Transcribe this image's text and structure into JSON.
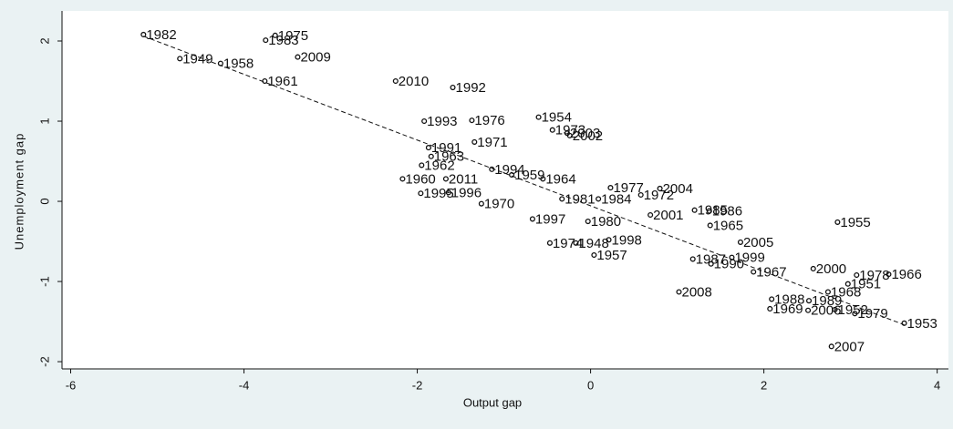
{
  "chart_data": {
    "type": "scatter",
    "x_label": "Output gap",
    "y_label": "Unemployment gap",
    "xlim": [
      -6.1,
      4.13
    ],
    "ylim": [
      -2.09,
      2.375
    ],
    "xticks": [
      -6,
      -4,
      -2,
      0,
      2,
      4
    ],
    "yticks": [
      -2,
      -1,
      0,
      1,
      2
    ],
    "color": "#111111",
    "fit_color": "#111111",
    "fit_line": {
      "x": [
        -5.16,
        3.62
      ],
      "y": [
        2.06,
        -1.54
      ]
    },
    "labels": [
      "1982",
      "1975",
      "1983",
      "1949",
      "1958",
      "2009",
      "1961",
      "2010",
      "1992",
      "1993",
      "1976",
      "1954",
      "1973",
      "2003",
      "2002",
      "1971",
      "1991",
      "1963",
      "1962",
      "1994",
      "1959",
      "1964",
      "1960",
      "2011",
      "1977",
      "2004",
      "1972",
      "1981",
      "1984",
      "1995",
      "1996",
      "1970",
      "1985",
      "1986",
      "2001",
      "1965",
      "1997",
      "1980",
      "1955",
      "2005",
      "1998",
      "1974",
      "1948",
      "1999",
      "1987",
      "1990",
      "1957",
      "1967",
      "2000",
      "1978",
      "1966",
      "1951",
      "1968",
      "2008",
      "1988",
      "1989",
      "1969",
      "2006",
      "1952",
      "1979",
      "1953",
      "2007"
    ],
    "x": [
      -5.16,
      -3.64,
      -3.75,
      -4.74,
      -4.27,
      -3.38,
      -3.76,
      -2.25,
      -1.59,
      -1.92,
      -1.37,
      -0.6,
      -0.44,
      -0.27,
      -0.24,
      -1.34,
      -1.87,
      -1.84,
      -1.95,
      -1.14,
      -0.91,
      -0.55,
      -2.17,
      -1.67,
      0.23,
      0.8,
      0.58,
      -0.33,
      0.09,
      -1.96,
      -1.64,
      -1.26,
      1.2,
      1.37,
      0.69,
      1.38,
      -0.67,
      -0.03,
      2.85,
      1.73,
      0.21,
      -0.47,
      -0.17,
      1.63,
      1.18,
      1.39,
      0.04,
      1.88,
      2.57,
      3.07,
      3.44,
      2.97,
      2.74,
      1.02,
      2.09,
      2.52,
      2.07,
      2.51,
      2.82,
      3.05,
      3.62,
      2.78
    ],
    "y": [
      2.08,
      2.07,
      2.01,
      1.78,
      1.72,
      1.8,
      1.5,
      1.5,
      1.42,
      1.0,
      1.01,
      1.05,
      0.89,
      0.85,
      0.82,
      0.74,
      0.67,
      0.56,
      0.45,
      0.4,
      0.33,
      0.28,
      0.28,
      0.28,
      0.17,
      0.16,
      0.08,
      0.03,
      0.03,
      0.1,
      0.11,
      -0.03,
      -0.11,
      -0.12,
      -0.17,
      -0.3,
      -0.22,
      -0.25,
      -0.26,
      -0.51,
      -0.48,
      -0.52,
      -0.52,
      -0.7,
      -0.72,
      -0.78,
      -0.67,
      -0.88,
      -0.84,
      -0.92,
      -0.91,
      -1.03,
      -1.13,
      -1.13,
      -1.22,
      -1.24,
      -1.34,
      -1.36,
      -1.35,
      -1.4,
      -1.52,
      -1.81
    ]
  }
}
